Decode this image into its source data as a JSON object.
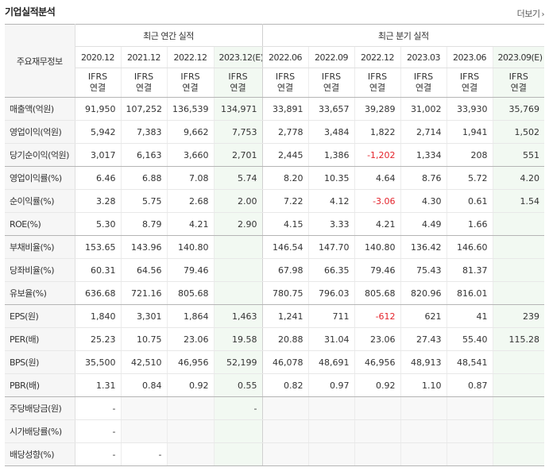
{
  "header": {
    "title": "기업실적분석",
    "more": "더보기",
    "chevron": "›"
  },
  "table": {
    "label_head": "주요재무정보",
    "group_annual": "최근 연간 실적",
    "group_quarter": "최근 분기 실적",
    "periods": [
      "2020.12",
      "2021.12",
      "2022.12",
      "2023.12(E)",
      "2022.06",
      "2022.09",
      "2022.12",
      "2023.03",
      "2023.06",
      "2023.09(E)"
    ],
    "ifrs_line1": "IFRS",
    "ifrs_line2": "연결",
    "rows": [
      {
        "label": "매출액(억원)",
        "values": [
          "91,950",
          "107,252",
          "136,539",
          "134,971",
          "33,891",
          "33,657",
          "39,289",
          "31,002",
          "33,930",
          "35,769"
        ]
      },
      {
        "label": "영업이익(억원)",
        "values": [
          "5,942",
          "7,383",
          "9,662",
          "7,753",
          "2,778",
          "3,484",
          "1,822",
          "2,714",
          "1,941",
          "1,502"
        ]
      },
      {
        "label": "당기순이익(억원)",
        "values": [
          "3,017",
          "6,163",
          "3,660",
          "2,701",
          "2,445",
          "1,386",
          "-1,202",
          "1,334",
          "208",
          "551"
        ]
      },
      {
        "label": "영업이익률(%)",
        "values": [
          "6.46",
          "6.88",
          "7.08",
          "5.74",
          "8.20",
          "10.35",
          "4.64",
          "8.76",
          "5.72",
          "4.20"
        ]
      },
      {
        "label": "순이익률(%)",
        "values": [
          "3.28",
          "5.75",
          "2.68",
          "2.00",
          "7.22",
          "4.12",
          "-3.06",
          "4.30",
          "0.61",
          "1.54"
        ]
      },
      {
        "label": "ROE(%)",
        "values": [
          "5.30",
          "8.79",
          "4.21",
          "2.90",
          "4.15",
          "3.33",
          "4.21",
          "4.49",
          "1.66",
          ""
        ]
      },
      {
        "label": "부채비율(%)",
        "values": [
          "153.65",
          "143.96",
          "140.80",
          "",
          "146.54",
          "147.70",
          "140.80",
          "136.42",
          "146.60",
          ""
        ]
      },
      {
        "label": "당좌비율(%)",
        "values": [
          "60.31",
          "64.56",
          "79.46",
          "",
          "67.98",
          "66.35",
          "79.46",
          "75.43",
          "81.37",
          ""
        ]
      },
      {
        "label": "유보율(%)",
        "values": [
          "636.68",
          "721.16",
          "805.68",
          "",
          "780.75",
          "796.03",
          "805.68",
          "820.96",
          "816.01",
          ""
        ]
      },
      {
        "label": "EPS(원)",
        "values": [
          "1,840",
          "3,301",
          "1,864",
          "1,463",
          "1,241",
          "711",
          "-612",
          "621",
          "41",
          "239"
        ]
      },
      {
        "label": "PER(배)",
        "values": [
          "25.23",
          "10.75",
          "23.06",
          "19.58",
          "20.88",
          "31.04",
          "23.06",
          "27.43",
          "55.40",
          "115.28"
        ]
      },
      {
        "label": "BPS(원)",
        "values": [
          "35,500",
          "42,510",
          "46,956",
          "52,199",
          "46,078",
          "48,691",
          "46,956",
          "48,913",
          "48,541",
          ""
        ]
      },
      {
        "label": "PBR(배)",
        "values": [
          "1.31",
          "0.84",
          "0.92",
          "0.55",
          "0.82",
          "0.97",
          "0.92",
          "1.10",
          "0.87",
          ""
        ]
      },
      {
        "label": "주당배당금(원)",
        "values": [
          "-",
          "",
          "",
          "-",
          "",
          "",
          "",
          "",
          "",
          ""
        ]
      },
      {
        "label": "시가배당률(%)",
        "values": [
          "-",
          "",
          "",
          "",
          "",
          "",
          "",
          "",
          "",
          ""
        ]
      },
      {
        "label": "배당성향(%)",
        "values": [
          "-",
          "-",
          "",
          "",
          "",
          "",
          "",
          "",
          "",
          ""
        ]
      }
    ]
  }
}
